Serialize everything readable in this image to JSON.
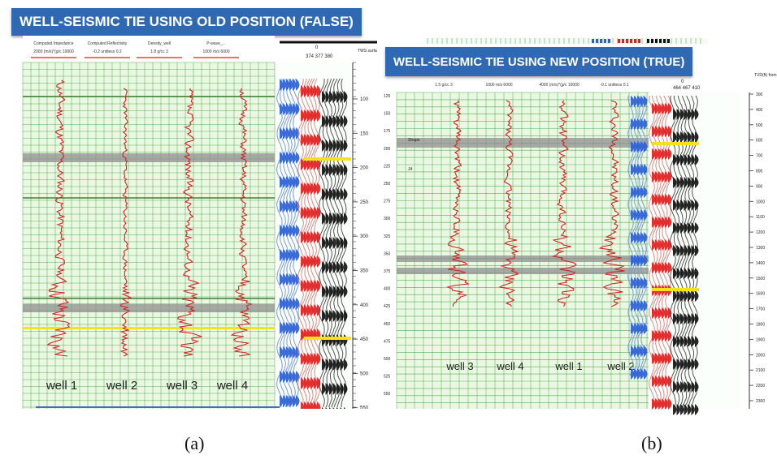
{
  "panel_a": {
    "title": "WELL-SEISMIC TIE USING OLD POSITION (FALSE)",
    "headers": [
      "Computed Impedance",
      "Computed Reflectivity",
      "Density_well",
      "P-wave_..."
    ],
    "scales": [
      "2000 (m/s)*(g/c 10000",
      "-0.2 unitless 0.2",
      "1.8 g/cc 3",
      "1000 m/s 6000"
    ],
    "trace_top_label": "0",
    "trace_numbers": "374 377 380",
    "axis_title": "TWS surface",
    "depth_labels": [
      "100",
      "150",
      "200",
      "250",
      "300",
      "350",
      "400",
      "450",
      "500",
      "550"
    ],
    "wells": [
      "well 1",
      "well 2",
      "well 3",
      "well 4"
    ],
    "caption": "(a)"
  },
  "panel_b": {
    "title": "WELL-SEISMIC TIE USING NEW POSITION (TRUE)",
    "scales": [
      "1.5 g/cc 3",
      "1000 m/s 6000",
      "4000 (m/s)*(g/c 10000",
      "-0.1 unitless 0.1"
    ],
    "trace_top_label": "0",
    "trace_numbers": "464 467 410",
    "axis_title": "TVD(ft) from surface",
    "left_labels": [
      "125",
      "150",
      "175",
      "200",
      "225",
      "250",
      "275",
      "300",
      "325",
      "350",
      "375",
      "400",
      "425",
      "450",
      "475",
      "500",
      "525",
      "550"
    ],
    "right_labels": [
      "300",
      "400",
      "500",
      "600",
      "700",
      "800",
      "900",
      "1000",
      "1100",
      "1200",
      "1300",
      "1400",
      "1500",
      "1600",
      "1700",
      "1800",
      "1900",
      "2000",
      "2100",
      "2200",
      "2300"
    ],
    "marker_labels": [
      "Shape",
      "J4"
    ],
    "wells": [
      "well 3",
      "well 4",
      "well 1",
      "well 2"
    ],
    "caption": "(b)"
  },
  "colors": {
    "banner": "#2f69b4",
    "grid_bg": "#eaf7e2",
    "grid_line": "#33a02c",
    "log_red": "#d42020",
    "seismic_blue": "#2c5fd4",
    "seismic_red": "#e01e1e",
    "seismic_black": "#111111",
    "marker_gray": "#8d8d8d",
    "marker_yellow": "#f6e21a"
  }
}
